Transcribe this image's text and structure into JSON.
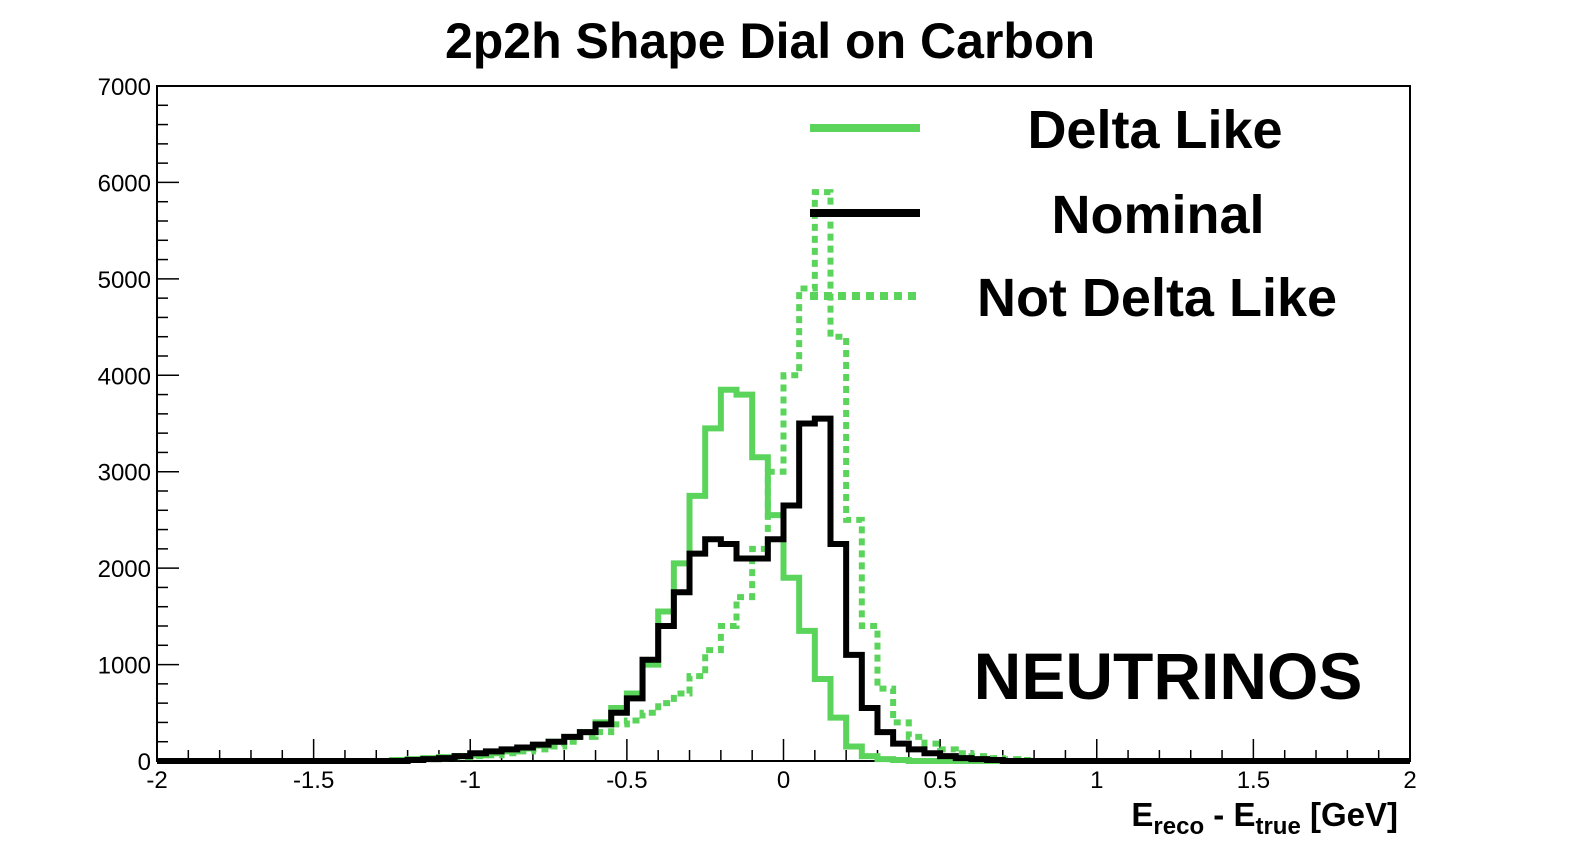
{
  "chart_data": {
    "type": "line",
    "title": "2p2h Shape Dial on Carbon",
    "xlabel": {
      "main": "E",
      "sub1": "reco",
      "mid": " - E",
      "sub2": "true",
      "tail": " [GeV]"
    },
    "ylabel": "",
    "xlim": [
      -2,
      2
    ],
    "ylim": [
      0,
      7000
    ],
    "x_ticks": [
      "-2",
      "-1.5",
      "-1",
      "-0.5",
      "0",
      "0.5",
      "1",
      "1.5",
      "2"
    ],
    "y_ticks": [
      "0",
      "1000",
      "2000",
      "3000",
      "4000",
      "5000",
      "6000",
      "7000"
    ],
    "annotation": "NEUTRINOS",
    "legend_position": "top-right",
    "bin_edges_start": -2.0,
    "bin_width": 0.05,
    "series": [
      {
        "name": "Delta Like",
        "color": "#5bd45b",
        "style": "solid",
        "values": [
          0,
          0,
          0,
          0,
          0,
          0,
          0,
          0,
          0,
          0,
          0,
          0,
          0,
          0,
          0,
          10,
          20,
          30,
          40,
          50,
          60,
          80,
          100,
          130,
          160,
          200,
          250,
          300,
          400,
          550,
          700,
          1000,
          1550,
          2050,
          2750,
          3450,
          3850,
          3800,
          3150,
          2550,
          1900,
          1350,
          850,
          450,
          150,
          50,
          20,
          10,
          0,
          0,
          0,
          0,
          0,
          0,
          0,
          0,
          0,
          0,
          0,
          0,
          0,
          0,
          0,
          0,
          0,
          0,
          0,
          0,
          0,
          0,
          0,
          0,
          0,
          0,
          0,
          0,
          0,
          0,
          0,
          0
        ]
      },
      {
        "name": "Nominal",
        "color": "#000000",
        "style": "solid",
        "values": [
          0,
          0,
          0,
          0,
          0,
          0,
          0,
          0,
          0,
          0,
          0,
          0,
          0,
          0,
          0,
          0,
          10,
          20,
          30,
          50,
          80,
          100,
          120,
          140,
          170,
          200,
          250,
          300,
          380,
          500,
          650,
          1050,
          1400,
          1750,
          2150,
          2300,
          2250,
          2100,
          2100,
          2300,
          2650,
          3500,
          3550,
          2250,
          1100,
          550,
          300,
          180,
          120,
          80,
          50,
          30,
          20,
          10,
          0,
          0,
          0,
          0,
          0,
          0,
          0,
          0,
          0,
          0,
          0,
          0,
          0,
          0,
          0,
          0,
          0,
          0,
          0,
          0,
          0,
          0,
          0,
          0,
          0,
          0
        ]
      },
      {
        "name": "Not Delta Like",
        "color": "#5bd45b",
        "style": "dotted",
        "values": [
          0,
          0,
          0,
          0,
          0,
          0,
          0,
          0,
          0,
          0,
          0,
          0,
          0,
          0,
          0,
          0,
          10,
          20,
          30,
          40,
          50,
          60,
          80,
          100,
          120,
          150,
          200,
          250,
          300,
          380,
          420,
          500,
          600,
          700,
          880,
          1150,
          1400,
          1700,
          2200,
          3000,
          4000,
          4900,
          5900,
          4400,
          2500,
          1400,
          750,
          400,
          250,
          180,
          120,
          80,
          50,
          30,
          20,
          10,
          0,
          0,
          0,
          0,
          0,
          0,
          0,
          0,
          0,
          0,
          0,
          0,
          0,
          0,
          0,
          0,
          0,
          0,
          0,
          0,
          0,
          0,
          0,
          0
        ]
      }
    ]
  }
}
